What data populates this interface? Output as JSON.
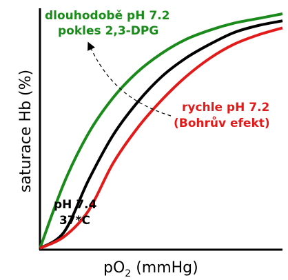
{
  "chart_data": {
    "type": "line",
    "xlabel_main": "pO",
    "xlabel_sub": "2",
    "xlabel_unit": " (mmHg)",
    "ylabel": "saturace Hb  (%)",
    "grid": false,
    "series": [
      {
        "name_lines": [
          "dlouhodobě pH 7.2",
          "pokles 2,3-DPG"
        ],
        "color": "#1a8a1a",
        "x": [
          0,
          10,
          20,
          30,
          40,
          50,
          60,
          70,
          80,
          90,
          100
        ],
        "y": [
          0,
          28,
          49,
          64,
          75,
          83,
          89,
          93,
          96,
          98,
          100
        ]
      },
      {
        "name_lines": [
          "pH 7.4",
          "37*C"
        ],
        "color": "#000000",
        "x": [
          0,
          10,
          20,
          30,
          40,
          50,
          60,
          70,
          80,
          90,
          100
        ],
        "y": [
          0,
          7,
          29,
          48,
          62,
          73,
          81,
          87,
          92,
          95,
          97
        ]
      },
      {
        "name_lines": [
          "rychle pH 7.2",
          "(Bohrův efekt)"
        ],
        "color": "#e31a1a",
        "x": [
          0,
          10,
          20,
          30,
          40,
          50,
          60,
          70,
          80,
          90,
          100
        ],
        "y": [
          0,
          5,
          16,
          36,
          51,
          63,
          73,
          81,
          87,
          91,
          94
        ]
      }
    ],
    "arrow": {
      "style": "dashed",
      "from_series": 2,
      "to_series": 0
    }
  }
}
